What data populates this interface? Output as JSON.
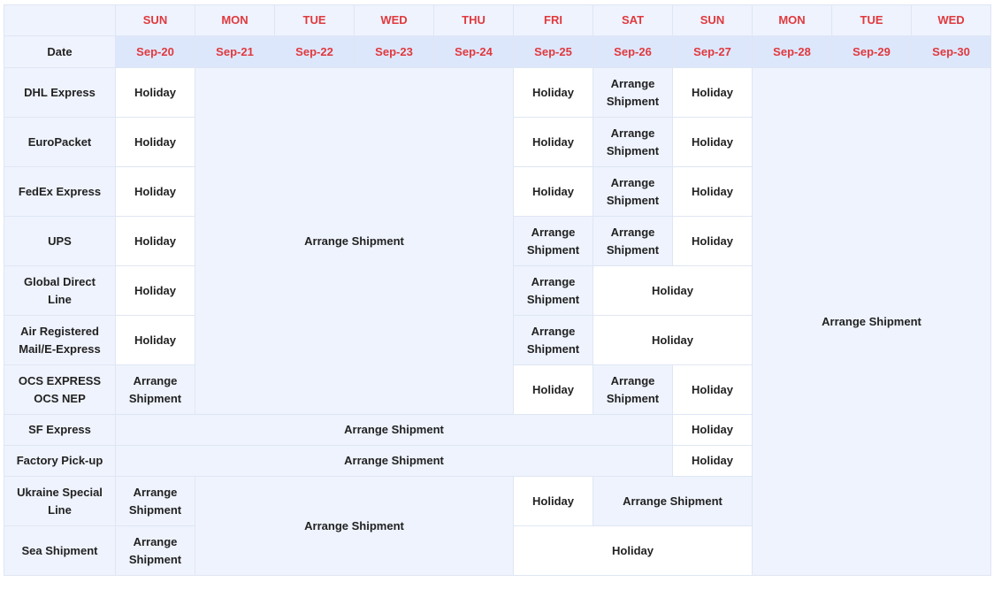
{
  "header": {
    "days": [
      "SUN",
      "MON",
      "TUE",
      "WED",
      "THU",
      "FRI",
      "SAT",
      "SUN",
      "MON",
      "TUE",
      "WED"
    ],
    "date_label": "Date",
    "dates": [
      "Sep-20",
      "Sep-21",
      "Sep-22",
      "Sep-23",
      "Sep-24",
      "Sep-25",
      "Sep-26",
      "Sep-27",
      "Sep-28",
      "Sep-29",
      "Sep-30"
    ]
  },
  "rows": [
    {
      "carrier": "DHL Express",
      "cells": [
        "Holiday",
        "Arrange Shipment",
        "Holiday",
        "Arrange\nShipment",
        "Holiday",
        "Arrange Shipment"
      ]
    },
    {
      "carrier": "EuroPacket",
      "cells": [
        "Holiday",
        "Holiday",
        "Arrange\nShipment",
        "Holiday"
      ]
    },
    {
      "carrier": "FedEx Express",
      "cells": [
        "Holiday",
        "Holiday",
        "Arrange\nShipment",
        "Holiday"
      ]
    },
    {
      "carrier": "UPS",
      "cells": [
        "Holiday",
        "Arrange\nShipment",
        "Arrange\nShipment",
        "Holiday"
      ]
    },
    {
      "carrier": "Global Direct\nLine",
      "cells": [
        "Holiday",
        "Arrange\nShipment",
        "Holiday"
      ]
    },
    {
      "carrier": "Air Registered\nMail/E-Express",
      "cells": [
        "Holiday",
        "Arrange\nShipment",
        "Holiday"
      ]
    },
    {
      "carrier": "OCS EXPRESS\nOCS NEP",
      "cells": [
        "Arrange\nShipment",
        "Holiday",
        "Arrange\nShipment",
        "Holiday"
      ]
    },
    {
      "carrier": "SF Express",
      "cells": [
        "Arrange Shipment",
        "Holiday"
      ]
    },
    {
      "carrier": "Factory Pick-up",
      "cells": [
        "Arrange Shipment",
        "Holiday"
      ]
    },
    {
      "carrier": "Ukraine Special\nLine",
      "cells": [
        "Arrange\nShipment",
        "Arrange Shipment",
        "Holiday",
        "Arrange Shipment"
      ]
    },
    {
      "carrier": "Sea Shipment",
      "cells": [
        "Arrange\nShipment",
        "Holiday"
      ]
    }
  ]
}
